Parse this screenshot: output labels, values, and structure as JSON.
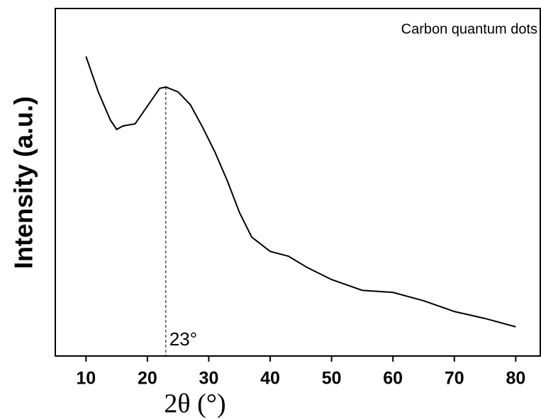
{
  "chart_data": {
    "type": "line",
    "x_label": "2θ (°)",
    "y_label": "Intensity (a.u.)",
    "x": [
      10,
      12,
      14,
      15,
      16,
      18,
      20,
      22,
      23,
      25,
      27,
      29,
      31,
      33,
      35,
      37,
      40,
      43,
      46,
      50,
      55,
      60,
      65,
      70,
      75,
      80
    ],
    "series": [
      {
        "name": "Carbon quantum dots",
        "color": "#000000",
        "values": [
          86.2,
          76.0,
          67.8,
          65.2,
          66.2,
          66.8,
          71.9,
          77.0,
          77.4,
          76.0,
          72.3,
          65.8,
          58.7,
          50.5,
          41.3,
          34.2,
          30.1,
          28.7,
          25.5,
          22.0,
          18.9,
          18.3,
          15.9,
          12.8,
          10.8,
          8.4
        ]
      }
    ],
    "annotations": [
      {
        "text": "23°",
        "x": 23
      }
    ],
    "xlim": [
      5,
      84
    ],
    "xticks": [
      10,
      20,
      30,
      40,
      50,
      60,
      70,
      80
    ],
    "ylim": [
      0,
      100
    ],
    "legend": "upper right"
  }
}
